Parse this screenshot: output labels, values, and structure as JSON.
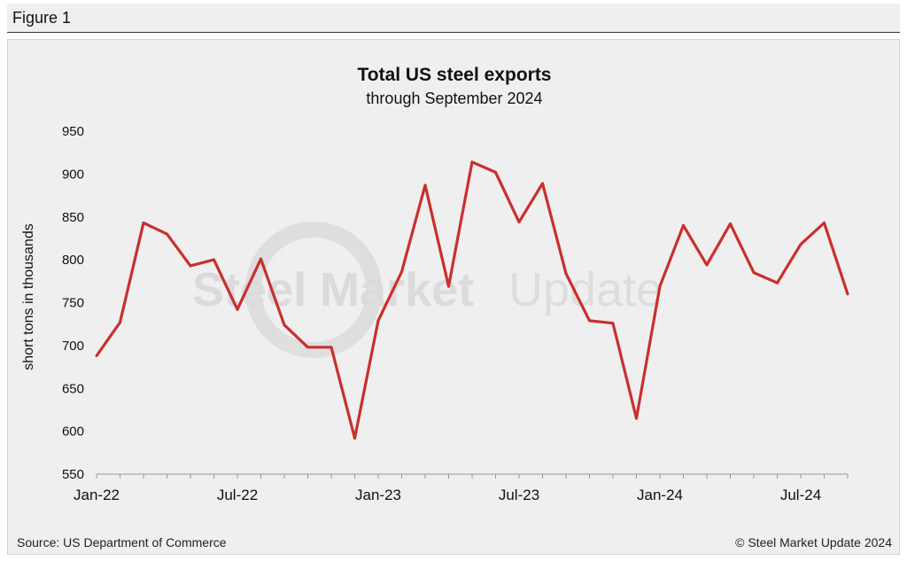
{
  "header": {
    "figure_label": "Figure 1"
  },
  "watermark": {
    "bold": "Steel Market",
    "light": "Update"
  },
  "footer": {
    "source": "Source: US Department of Commerce",
    "copyright": "© Steel Market Update 2024"
  },
  "colors": {
    "line": "#c9302c",
    "axis": "#999999",
    "panel": "#efefef"
  },
  "chart_data": {
    "type": "line",
    "title": "Total US steel exports",
    "subtitle": "through September 2024",
    "ylabel": "short tons in thousands",
    "xlabel": "",
    "ylim": [
      550,
      950
    ],
    "yticks": [
      550,
      600,
      650,
      700,
      750,
      800,
      850,
      900,
      950
    ],
    "x_tick_labels": [
      {
        "index": 0,
        "label": "Jan-22"
      },
      {
        "index": 6,
        "label": "Jul-22"
      },
      {
        "index": 12,
        "label": "Jan-23"
      },
      {
        "index": 18,
        "label": "Jul-23"
      },
      {
        "index": 24,
        "label": "Jan-24"
      },
      {
        "index": 30,
        "label": "Jul-24"
      }
    ],
    "grid": false,
    "series": [
      {
        "name": "Total US steel exports",
        "x": [
          "Jan-22",
          "Feb-22",
          "Mar-22",
          "Apr-22",
          "May-22",
          "Jun-22",
          "Jul-22",
          "Aug-22",
          "Sep-22",
          "Oct-22",
          "Nov-22",
          "Dec-22",
          "Jan-23",
          "Feb-23",
          "Mar-23",
          "Apr-23",
          "May-23",
          "Jun-23",
          "Jul-23",
          "Aug-23",
          "Sep-23",
          "Oct-23",
          "Nov-23",
          "Dec-23",
          "Jan-24",
          "Feb-24",
          "Mar-24",
          "Apr-24",
          "May-24",
          "Jun-24",
          "Jul-24",
          "Aug-24",
          "Sep-24"
        ],
        "values": [
          688,
          727,
          843,
          830,
          793,
          800,
          742,
          801,
          724,
          698,
          698,
          592,
          729,
          786,
          887,
          769,
          914,
          902,
          844,
          889,
          784,
          729,
          726,
          615,
          769,
          840,
          794,
          842,
          785,
          773,
          818,
          843,
          760
        ]
      }
    ]
  }
}
